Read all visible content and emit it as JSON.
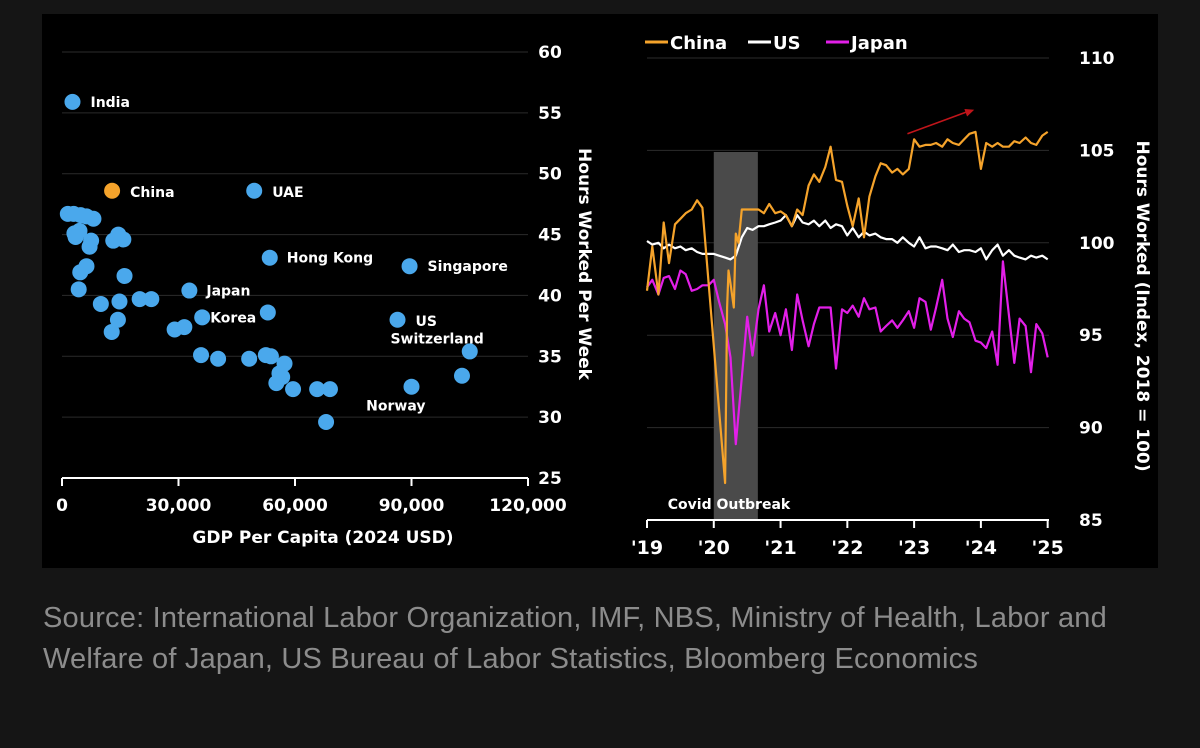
{
  "source_note": "Source: International Labor Organization, IMF, NBS, Ministry of Health, Labor and Welfare of Japan, US Bureau of Labor Statistics, Bloomberg Economics",
  "colors": {
    "background": "#151515",
    "panel": "#000000",
    "china": "#f5a32b",
    "us": "#ffffff",
    "japan": "#e21fe8",
    "dots": "#4aa8ec",
    "shade": "#4a4a4a",
    "trend_arrow": "#c0151a",
    "axis": "#ffffff",
    "source_text": "#8c8c8c"
  },
  "chart_data": [
    {
      "type": "scatter",
      "xlabel": "GDP Per Capita (2024 USD)",
      "ylabel": "Hours Worked Per Week",
      "xlim": [
        0,
        120000
      ],
      "ylim": [
        25,
        60
      ],
      "x_ticks": [
        0,
        30000,
        60000,
        90000,
        120000
      ],
      "x_tick_labels": [
        "0",
        "30,000",
        "60,000",
        "90,000",
        "120,000"
      ],
      "y_ticks": [
        25,
        30,
        35,
        40,
        45,
        50,
        55,
        60
      ],
      "y_tick_labels": [
        "25",
        "30",
        "35",
        "40",
        "45",
        "50",
        "55",
        "60"
      ],
      "y_axis_position": "right",
      "points": [
        {
          "label": "India",
          "x": 2700,
          "y": 55.9
        },
        {
          "label": "China",
          "x": 12900,
          "y": 48.6,
          "highlight": true
        },
        {
          "label": "UAE",
          "x": 49500,
          "y": 48.6
        },
        {
          "label": "Hong Kong",
          "x": 53500,
          "y": 43.1
        },
        {
          "label": "Singapore",
          "x": 89500,
          "y": 42.4
        },
        {
          "label": "Japan",
          "x": 32800,
          "y": 40.4
        },
        {
          "label": "Korea",
          "x": 36100,
          "y": 38.2
        },
        {
          "label": "US",
          "x": 86400,
          "y": 38.0
        },
        {
          "label": "Switzerland",
          "x": 105000,
          "y": 35.4
        },
        {
          "label": "Norway",
          "x": 90000,
          "y": 32.5
        },
        {
          "label": "",
          "x": 1500,
          "y": 46.7
        },
        {
          "label": "",
          "x": 3000,
          "y": 46.7
        },
        {
          "label": "",
          "x": 4800,
          "y": 46.6
        },
        {
          "label": "",
          "x": 6300,
          "y": 46.5
        },
        {
          "label": "",
          "x": 8100,
          "y": 46.3
        },
        {
          "label": "",
          "x": 3200,
          "y": 45.1
        },
        {
          "label": "",
          "x": 3500,
          "y": 44.8
        },
        {
          "label": "",
          "x": 4500,
          "y": 45.3
        },
        {
          "label": "",
          "x": 7500,
          "y": 44.5
        },
        {
          "label": "",
          "x": 7100,
          "y": 44.0
        },
        {
          "label": "",
          "x": 13200,
          "y": 44.5
        },
        {
          "label": "",
          "x": 14500,
          "y": 45.0
        },
        {
          "label": "",
          "x": 15800,
          "y": 44.6
        },
        {
          "label": "",
          "x": 6300,
          "y": 42.4
        },
        {
          "label": "",
          "x": 4700,
          "y": 41.9
        },
        {
          "label": "",
          "x": 16100,
          "y": 41.6
        },
        {
          "label": "",
          "x": 4300,
          "y": 40.5
        },
        {
          "label": "",
          "x": 10000,
          "y": 39.3
        },
        {
          "label": "",
          "x": 14800,
          "y": 39.5
        },
        {
          "label": "",
          "x": 20000,
          "y": 39.7
        },
        {
          "label": "",
          "x": 23000,
          "y": 39.7
        },
        {
          "label": "",
          "x": 14400,
          "y": 38.0
        },
        {
          "label": "",
          "x": 12800,
          "y": 37.0
        },
        {
          "label": "",
          "x": 29000,
          "y": 37.2
        },
        {
          "label": "",
          "x": 31500,
          "y": 37.4
        },
        {
          "label": "",
          "x": 53000,
          "y": 38.6
        },
        {
          "label": "",
          "x": 35800,
          "y": 35.1
        },
        {
          "label": "",
          "x": 40200,
          "y": 34.8
        },
        {
          "label": "",
          "x": 48200,
          "y": 34.8
        },
        {
          "label": "",
          "x": 52500,
          "y": 35.1
        },
        {
          "label": "",
          "x": 53800,
          "y": 35.0
        },
        {
          "label": "",
          "x": 57300,
          "y": 34.4
        },
        {
          "label": "",
          "x": 56000,
          "y": 33.6
        },
        {
          "label": "",
          "x": 55200,
          "y": 32.8
        },
        {
          "label": "",
          "x": 56700,
          "y": 33.3
        },
        {
          "label": "",
          "x": 59500,
          "y": 32.3
        },
        {
          "label": "",
          "x": 65700,
          "y": 32.3
        },
        {
          "label": "",
          "x": 69000,
          "y": 32.3
        },
        {
          "label": "",
          "x": 68000,
          "y": 29.6
        },
        {
          "label": "",
          "x": 103000,
          "y": 33.4
        }
      ]
    },
    {
      "type": "line",
      "ylabel": "Hours Worked (Index, 2018 = 100)",
      "xlim": [
        2019.0,
        2025.02
      ],
      "ylim": [
        85,
        110
      ],
      "x_ticks": [
        2019,
        2020,
        2021,
        2022,
        2023,
        2024,
        2025
      ],
      "x_tick_labels": [
        "'19",
        "'20",
        "'21",
        "'22",
        "'23",
        "'24",
        "'25"
      ],
      "y_ticks": [
        85,
        90,
        95,
        100,
        105,
        110
      ],
      "y_tick_labels": [
        "85",
        "90",
        "95",
        "100",
        "105",
        "110"
      ],
      "y_axis_position": "right",
      "legend": {
        "position": "top-left",
        "entries": [
          "China",
          "US",
          "Japan"
        ]
      },
      "shaded_region": {
        "x_start": 2020.0,
        "x_end": 2020.66,
        "label": "Covid Outbreak"
      },
      "trend_arrow": {
        "from": [
          2022.9,
          105.9
        ],
        "to": [
          2023.9,
          107.2
        ]
      },
      "series": [
        {
          "name": "China",
          "color": "#f5a32b",
          "x": [
            2019.0,
            2019.08,
            2019.17,
            2019.25,
            2019.33,
            2019.42,
            2019.5,
            2019.58,
            2019.67,
            2019.75,
            2019.83,
            2020.17,
            2020.2,
            2020.22,
            2020.25,
            2020.3,
            2020.33,
            2020.37,
            2020.42,
            2020.5,
            2020.58,
            2020.67,
            2020.75,
            2020.83,
            2020.92,
            2021.0,
            2021.08,
            2021.17,
            2021.25,
            2021.33,
            2021.42,
            2021.5,
            2021.58,
            2021.67,
            2021.75,
            2021.83,
            2021.92,
            2022.0,
            2022.08,
            2022.17,
            2022.25,
            2022.33,
            2022.42,
            2022.5,
            2022.58,
            2022.67,
            2022.75,
            2022.83,
            2022.92,
            2023.0,
            2023.08,
            2023.17,
            2023.25,
            2023.33,
            2023.42,
            2023.5,
            2023.58,
            2023.67,
            2023.75,
            2023.83,
            2023.92,
            2024.0,
            2024.08,
            2024.17,
            2024.25,
            2024.33,
            2024.42,
            2024.5,
            2024.58,
            2024.67,
            2024.75,
            2024.83,
            2024.92,
            2025.0
          ],
          "values": [
            97.4,
            99.8,
            97.2,
            101.1,
            98.9,
            101.0,
            101.3,
            101.6,
            101.8,
            102.3,
            101.9,
            87.0,
            96.5,
            98.5,
            97.8,
            96.5,
            100.5,
            100.0,
            101.8,
            101.8,
            101.8,
            101.8,
            101.6,
            102.1,
            101.6,
            101.7,
            101.5,
            100.9,
            101.8,
            101.5,
            103.1,
            103.7,
            103.3,
            104.1,
            105.2,
            103.4,
            103.3,
            102.0,
            100.9,
            102.4,
            100.3,
            102.5,
            103.6,
            104.3,
            104.2,
            103.8,
            104.0,
            103.7,
            104.0,
            105.6,
            105.2,
            105.3,
            105.3,
            105.4,
            105.2,
            105.6,
            105.4,
            105.3,
            105.6,
            105.9,
            106.0,
            104.0,
            105.4,
            105.2,
            105.4,
            105.2,
            105.2,
            105.5,
            105.4,
            105.7,
            105.4,
            105.3,
            105.8,
            106.0
          ]
        },
        {
          "name": "US",
          "color": "#ffffff",
          "x": [
            2019.0,
            2019.08,
            2019.17,
            2019.25,
            2019.33,
            2019.42,
            2019.5,
            2019.58,
            2019.67,
            2019.75,
            2019.83,
            2019.92,
            2020.0,
            2020.08,
            2020.17,
            2020.25,
            2020.33,
            2020.42,
            2020.5,
            2020.58,
            2020.67,
            2020.75,
            2020.83,
            2020.92,
            2021.0,
            2021.08,
            2021.17,
            2021.25,
            2021.33,
            2021.42,
            2021.5,
            2021.58,
            2021.67,
            2021.75,
            2021.83,
            2021.92,
            2022.0,
            2022.08,
            2022.17,
            2022.25,
            2022.33,
            2022.42,
            2022.5,
            2022.58,
            2022.67,
            2022.75,
            2022.83,
            2022.92,
            2023.0,
            2023.08,
            2023.17,
            2023.25,
            2023.33,
            2023.42,
            2023.5,
            2023.58,
            2023.67,
            2023.75,
            2023.83,
            2023.92,
            2024.0,
            2024.08,
            2024.17,
            2024.25,
            2024.33,
            2024.42,
            2024.5,
            2024.58,
            2024.67,
            2024.75,
            2024.83,
            2024.92,
            2025.0
          ],
          "values": [
            100.1,
            99.9,
            100.0,
            99.7,
            99.9,
            99.7,
            99.8,
            99.6,
            99.7,
            99.5,
            99.4,
            99.4,
            99.4,
            99.3,
            99.2,
            99.1,
            99.3,
            100.3,
            100.8,
            100.7,
            100.9,
            100.9,
            101.0,
            101.1,
            101.2,
            101.5,
            100.9,
            101.5,
            101.1,
            101.0,
            101.2,
            100.9,
            101.2,
            100.8,
            101.0,
            100.9,
            100.4,
            100.8,
            100.3,
            100.6,
            100.4,
            100.5,
            100.3,
            100.2,
            100.2,
            100.0,
            100.3,
            100.0,
            99.8,
            100.3,
            99.7,
            99.8,
            99.8,
            99.7,
            99.6,
            99.9,
            99.5,
            99.6,
            99.6,
            99.5,
            99.7,
            99.1,
            99.6,
            99.9,
            99.3,
            99.6,
            99.3,
            99.2,
            99.1,
            99.3,
            99.2,
            99.3,
            99.1
          ]
        },
        {
          "name": "Japan",
          "color": "#e21fe8",
          "x": [
            2019.0,
            2019.08,
            2019.17,
            2019.25,
            2019.33,
            2019.42,
            2019.5,
            2019.58,
            2019.67,
            2019.75,
            2019.83,
            2019.92,
            2020.0,
            2020.08,
            2020.17,
            2020.25,
            2020.33,
            2020.42,
            2020.5,
            2020.58,
            2020.67,
            2020.75,
            2020.83,
            2020.92,
            2021.0,
            2021.08,
            2021.17,
            2021.25,
            2021.33,
            2021.42,
            2021.5,
            2021.58,
            2021.67,
            2021.75,
            2021.83,
            2021.92,
            2022.0,
            2022.08,
            2022.17,
            2022.25,
            2022.33,
            2022.42,
            2022.5,
            2022.58,
            2022.67,
            2022.75,
            2022.83,
            2022.92,
            2023.0,
            2023.08,
            2023.17,
            2023.25,
            2023.33,
            2023.42,
            2023.5,
            2023.58,
            2023.67,
            2023.75,
            2023.83,
            2023.92,
            2024.0,
            2024.08,
            2024.17,
            2024.25,
            2024.33,
            2024.42,
            2024.5,
            2024.58,
            2024.67,
            2024.75,
            2024.83,
            2024.92,
            2025.0
          ],
          "values": [
            97.6,
            98.0,
            97.2,
            98.1,
            98.2,
            97.5,
            98.5,
            98.3,
            97.4,
            97.5,
            97.7,
            97.7,
            98.0,
            96.8,
            95.6,
            93.8,
            89.1,
            92.7,
            96.0,
            93.9,
            96.4,
            97.7,
            95.2,
            96.2,
            95.0,
            96.4,
            94.2,
            97.2,
            95.8,
            94.4,
            95.6,
            96.5,
            96.5,
            96.5,
            93.2,
            96.4,
            96.2,
            96.6,
            96.0,
            97.0,
            96.4,
            96.5,
            95.2,
            95.5,
            95.8,
            95.4,
            95.8,
            96.3,
            95.4,
            97.0,
            96.8,
            95.3,
            96.5,
            98.0,
            95.9,
            94.9,
            96.3,
            95.9,
            95.7,
            94.7,
            94.6,
            94.3,
            95.2,
            93.4,
            99.0,
            96.1,
            93.5,
            95.9,
            95.5,
            93.0,
            95.6,
            95.1,
            93.8
          ]
        }
      ]
    }
  ]
}
